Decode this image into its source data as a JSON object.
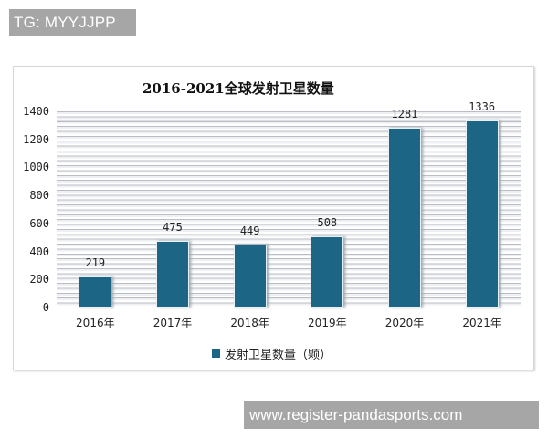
{
  "watermark_top": "TG: MYYJJPP",
  "watermark_bottom": "www.register-pandasports.com",
  "chart_data": {
    "type": "bar",
    "title": "2016-2021全球发射卫星数量",
    "categories": [
      "2016年",
      "2017年",
      "2018年",
      "2019年",
      "2020年",
      "2021年"
    ],
    "series": [
      {
        "name": "发射卫星数量（颗）",
        "values": [
          219,
          475,
          449,
          508,
          1281,
          1336
        ],
        "color": "#1c6585"
      }
    ],
    "data_labels": [
      "219",
      "475",
      "449",
      "508",
      "1281",
      "1336"
    ],
    "xlabel": "",
    "ylabel": "",
    "ylim": [
      0,
      1400
    ],
    "yticks": [
      "0",
      "200",
      "400",
      "600",
      "800",
      "1000",
      "1200",
      "1400"
    ],
    "grid": true,
    "legend_position": "bottom"
  }
}
